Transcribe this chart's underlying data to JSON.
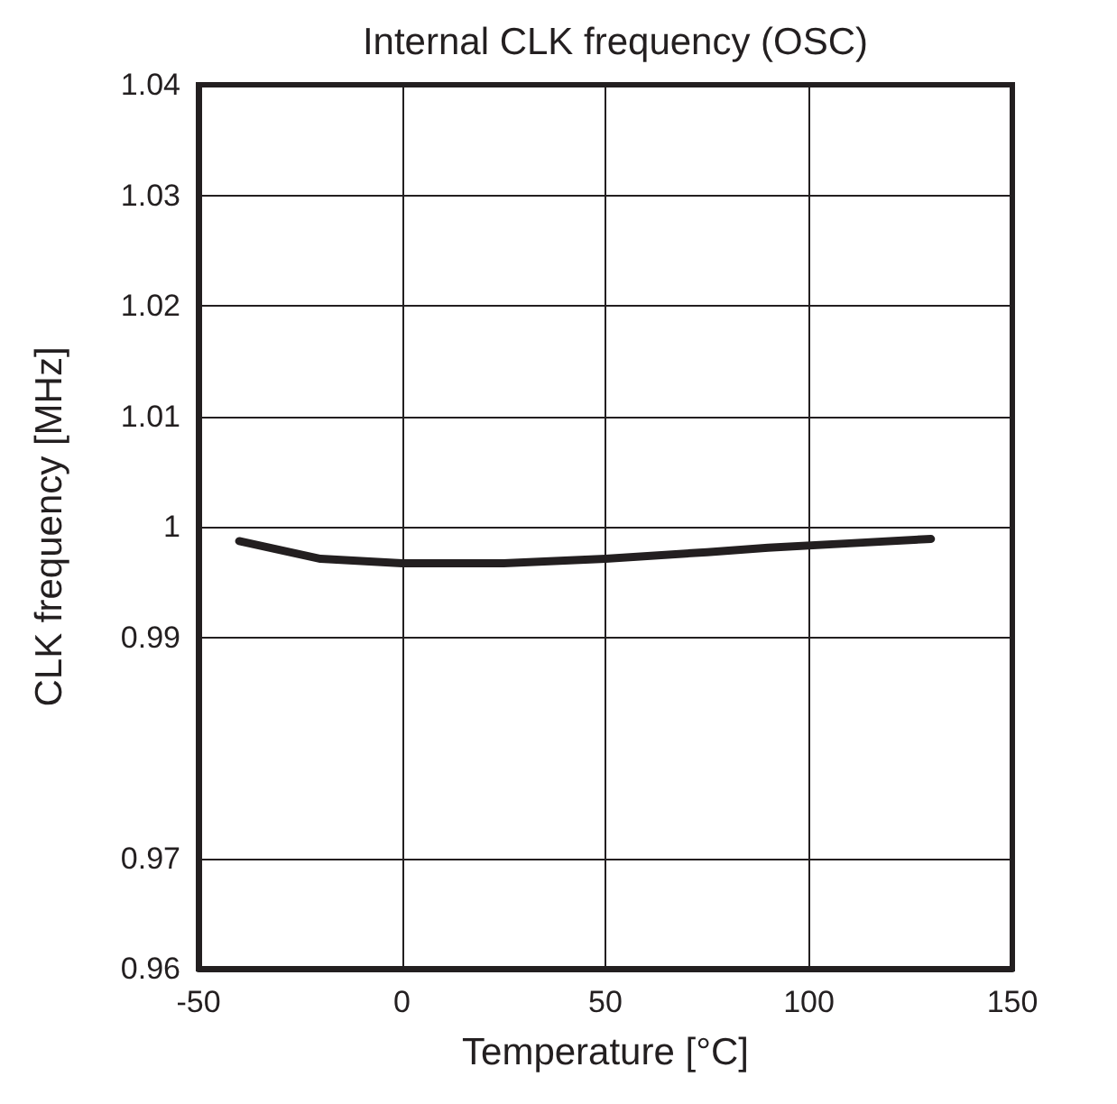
{
  "chart_data": {
    "type": "line",
    "title": "Internal CLK frequency (OSC)",
    "xlabel": "Temperature [°C]",
    "ylabel": "CLK frequency [MHz]",
    "x": [
      -40,
      -20,
      0,
      25,
      50,
      75,
      90,
      110,
      130
    ],
    "series": [
      {
        "color": "#231f20",
        "values": [
          0.9987,
          0.9971,
          0.9967,
          0.9967,
          0.9971,
          0.9977,
          0.9981,
          0.9985,
          0.9989
        ]
      }
    ],
    "xlim": [
      -50,
      150
    ],
    "xticks": [
      -50,
      0,
      50,
      100,
      150
    ],
    "ylim": [
      0.96,
      1.04
    ],
    "yticks": [
      0.96,
      0.97,
      0.99,
      1,
      1.01,
      1.02,
      1.03,
      1.04
    ],
    "grid": true,
    "marker": "none",
    "line_style": "solid"
  }
}
